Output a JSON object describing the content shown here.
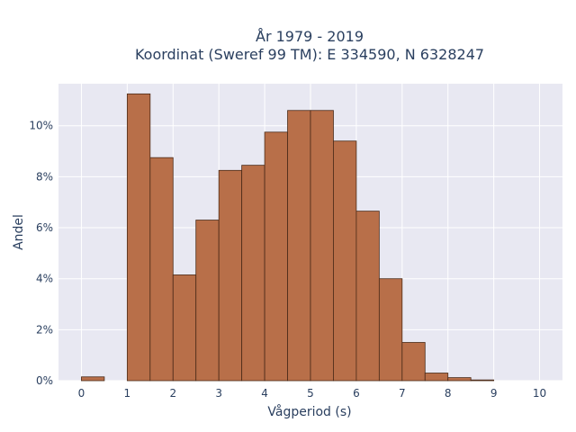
{
  "chart_data": {
    "type": "bar",
    "title_lines": [
      "År 1979 - 2019",
      "Koordinat (Sweref 99 TM): E 334590, N 6328247"
    ],
    "xlabel": "Vågperiod (s)",
    "ylabel": "Andel",
    "xlim": [
      -0.5,
      10.5
    ],
    "ylim": [
      0,
      11.65
    ],
    "x_ticks": [
      0,
      1,
      2,
      3,
      4,
      5,
      6,
      7,
      8,
      9,
      10
    ],
    "y_ticks": [
      0,
      2,
      4,
      6,
      8,
      10
    ],
    "y_tick_labels": [
      "0%",
      "2%",
      "4%",
      "6%",
      "8%",
      "10%"
    ],
    "bin_width": 0.5,
    "bins": [
      {
        "start": 0.0,
        "value": 0.15
      },
      {
        "start": 0.5,
        "value": 0.0
      },
      {
        "start": 1.0,
        "value": 11.25
      },
      {
        "start": 1.5,
        "value": 8.75
      },
      {
        "start": 2.0,
        "value": 4.15
      },
      {
        "start": 2.5,
        "value": 6.3
      },
      {
        "start": 3.0,
        "value": 8.25
      },
      {
        "start": 3.5,
        "value": 8.45
      },
      {
        "start": 4.0,
        "value": 9.75
      },
      {
        "start": 4.5,
        "value": 10.6
      },
      {
        "start": 5.0,
        "value": 10.6
      },
      {
        "start": 5.5,
        "value": 9.4
      },
      {
        "start": 6.0,
        "value": 6.65
      },
      {
        "start": 6.5,
        "value": 4.0
      },
      {
        "start": 7.0,
        "value": 1.5
      },
      {
        "start": 7.5,
        "value": 0.3
      },
      {
        "start": 8.0,
        "value": 0.12
      },
      {
        "start": 8.5,
        "value": 0.03
      }
    ],
    "bar_color": "#b86f49",
    "plot_bg": "#e8e8f2",
    "grid": true
  }
}
